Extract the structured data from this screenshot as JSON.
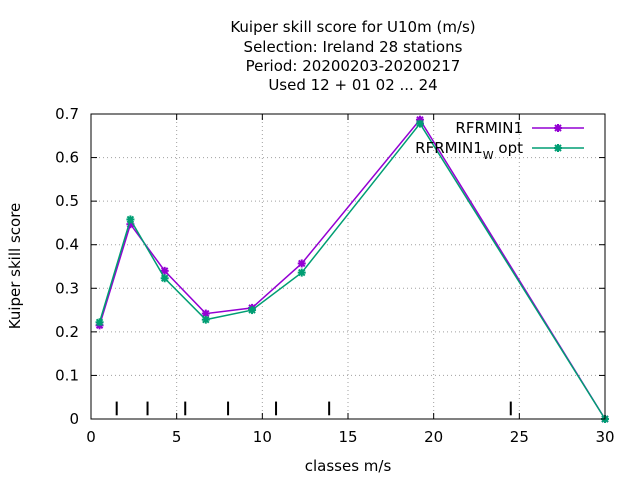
{
  "chart_data": {
    "type": "line",
    "title_lines": [
      "Kuiper skill score  for U10m (m/s)",
      "Selection: Ireland      28 stations",
      "Period: 20200203-20200217",
      "Used  12 + 01 02 ... 24"
    ],
    "xlabel": "classes m/s",
    "ylabel": "Kuiper skill score",
    "xlim": [
      0,
      30
    ],
    "ylim": [
      0,
      0.7
    ],
    "x_ticks": [
      "0",
      "5",
      "10",
      "15",
      "20",
      "25",
      "30"
    ],
    "y_ticks": [
      "0",
      "0.1",
      "0.2",
      "0.3",
      "0.4",
      "0.5",
      "0.6",
      "0.7"
    ],
    "grid": true,
    "legend_position": "top-right",
    "class_markers_x": [
      1.5,
      3.3,
      5.5,
      8.0,
      10.8,
      13.9,
      24.5
    ],
    "series": [
      {
        "name": "RFRMIN1",
        "color": "#9400d3",
        "x": [
          0.5,
          2.3,
          4.3,
          6.7,
          9.4,
          12.3,
          19.2,
          30.0
        ],
        "values": [
          0.215,
          0.447,
          0.34,
          0.242,
          0.255,
          0.357,
          0.687,
          0.0
        ]
      },
      {
        "name": "RFRMIN1",
        "name_subscript": "W",
        "name_suffix": "opt",
        "color": "#009e73",
        "x": [
          0.5,
          2.3,
          4.3,
          6.7,
          9.4,
          12.3,
          19.2,
          30.0
        ],
        "values": [
          0.222,
          0.458,
          0.323,
          0.228,
          0.25,
          0.336,
          0.678,
          0.0
        ]
      }
    ]
  }
}
